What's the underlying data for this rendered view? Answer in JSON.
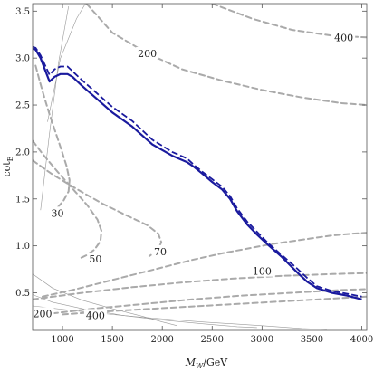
{
  "chart_data": {
    "type": "line",
    "xlabel": "M_W/GeV",
    "xlabel_parts": {
      "main": "M",
      "sub": "W",
      "unit": "/GeV"
    },
    "ylabel": "cot_E",
    "ylabel_parts": {
      "main": "cot",
      "sub": "E"
    },
    "xlim": [
      700,
      4050
    ],
    "ylim": [
      0.1,
      3.58
    ],
    "xticks": [
      1000,
      1500,
      2000,
      2500,
      3000,
      3500,
      4000
    ],
    "xtick_labels": [
      "1000",
      "1500",
      "2000",
      "2500",
      "3000",
      "3500",
      "4000"
    ],
    "yticks": [
      0.5,
      1.0,
      1.5,
      2.0,
      2.5,
      3.0,
      3.5
    ],
    "ytick_labels": [
      "0.5",
      "1.0",
      "1.5",
      "2.0",
      "2.5",
      "3.0",
      "3.5"
    ],
    "grid": false,
    "colors": {
      "exclusion": "#1a1a9e",
      "contour": "#aaaaaa",
      "thin": "#999999",
      "frame": "#555555"
    },
    "series": [
      {
        "style": "solid",
        "x": [
          700,
          730,
          780,
          870,
          920,
          980,
          1050,
          1100,
          1200,
          1350,
          1500,
          1700,
          1900,
          2100,
          2250,
          2320,
          2400,
          2500,
          2600,
          2680,
          2750,
          2850,
          2950,
          3050,
          3200,
          3350,
          3450,
          3550,
          3700,
          3850,
          4000
        ],
        "y": [
          3.1,
          3.09,
          3.0,
          2.75,
          2.8,
          2.83,
          2.83,
          2.8,
          2.7,
          2.56,
          2.42,
          2.27,
          2.08,
          1.96,
          1.89,
          1.84,
          1.77,
          1.68,
          1.6,
          1.5,
          1.37,
          1.23,
          1.12,
          1.02,
          0.88,
          0.72,
          0.62,
          0.55,
          0.5,
          0.47,
          0.43
        ]
      },
      {
        "style": "dashed",
        "x": [
          700,
          730,
          780,
          870,
          920,
          980,
          1050,
          1100,
          1200,
          1350,
          1500,
          1700,
          1900,
          2100,
          2250,
          2320,
          2400,
          2500,
          2600,
          2680,
          2750,
          2850,
          2950,
          3050,
          3200,
          3350,
          3450,
          3550,
          3700,
          3850,
          4000
        ],
        "y": [
          3.12,
          3.11,
          3.03,
          2.82,
          2.88,
          2.91,
          2.91,
          2.86,
          2.76,
          2.62,
          2.48,
          2.33,
          2.13,
          2.0,
          1.93,
          1.86,
          1.79,
          1.71,
          1.63,
          1.53,
          1.4,
          1.26,
          1.15,
          1.04,
          0.9,
          0.76,
          0.66,
          0.57,
          0.52,
          0.49,
          0.46
        ]
      }
    ],
    "contours": [
      {
        "label": "200",
        "x": [
          1240,
          1500,
          1850,
          2200,
          2600,
          3000,
          3400,
          3800,
          4050
        ],
        "y": [
          3.58,
          3.27,
          3.05,
          2.88,
          2.76,
          2.66,
          2.58,
          2.52,
          2.5
        ]
      },
      {
        "label": "400",
        "x": [
          2500,
          2900,
          3300,
          3700,
          4050
        ],
        "y": [
          3.58,
          3.42,
          3.3,
          3.24,
          3.22
        ]
      },
      {
        "label": "30",
        "x": [
          730,
          770,
          815,
          870,
          930,
          990,
          1040,
          1070,
          1060,
          1010,
          960,
          930,
          920,
          930
        ],
        "y": [
          2.92,
          2.76,
          2.59,
          2.4,
          2.21,
          2.02,
          1.85,
          1.7,
          1.58,
          1.48,
          1.42,
          1.38,
          1.34,
          1.32
        ]
      },
      {
        "label": "50",
        "x": [
          700,
          800,
          950,
          1100,
          1250,
          1350,
          1390,
          1380,
          1320,
          1240,
          1180
        ],
        "y": [
          2.12,
          1.98,
          1.79,
          1.61,
          1.43,
          1.28,
          1.16,
          1.05,
          0.96,
          0.9,
          0.87
        ]
      },
      {
        "label": "70",
        "x": [
          700,
          900,
          1150,
          1400,
          1650,
          1850,
          1960,
          1990,
          1960,
          1870
        ],
        "y": [
          1.91,
          1.76,
          1.6,
          1.45,
          1.32,
          1.22,
          1.13,
          1.04,
          0.96,
          0.89
        ]
      },
      {
        "label": "100",
        "x": [
          800,
          1100,
          1400,
          1700,
          2000,
          2300,
          2600,
          2900,
          3100,
          3300,
          3500,
          3700,
          3900,
          4050
        ],
        "y": [
          0.46,
          0.53,
          0.61,
          0.69,
          0.77,
          0.85,
          0.92,
          0.98,
          1.02,
          1.05,
          1.08,
          1.11,
          1.13,
          1.14
        ]
      },
      {
        "label": "",
        "x": [
          700,
          1200,
          1700,
          2200,
          2700,
          3200,
          3700,
          4050
        ],
        "y": [
          0.43,
          0.5,
          0.56,
          0.61,
          0.65,
          0.68,
          0.7,
          0.71
        ]
      },
      {
        "label": "200",
        "x": [
          900,
          1300,
          1800,
          2300,
          2800,
          3300,
          3800,
          4050
        ],
        "y": [
          0.28,
          0.33,
          0.38,
          0.43,
          0.47,
          0.5,
          0.53,
          0.54
        ]
      },
      {
        "label": "400",
        "x": [
          1000,
          1400,
          1900,
          2400,
          2900,
          3400,
          3900,
          4050
        ],
        "y": [
          0.27,
          0.3,
          0.33,
          0.36,
          0.39,
          0.42,
          0.45,
          0.46
        ]
      }
    ],
    "thin_lines": [
      {
        "x": [
          780,
          870,
          960,
          1060
        ],
        "y": [
          1.38,
          2.2,
          2.95,
          3.55
        ]
      },
      {
        "x": [
          850,
          980,
          1140,
          1230
        ],
        "y": [
          2.32,
          3.0,
          3.42,
          3.58
        ]
      },
      {
        "x": [
          700,
          900,
          1200,
          1500,
          1800,
          2000,
          2150
        ],
        "y": [
          0.7,
          0.55,
          0.42,
          0.33,
          0.25,
          0.19,
          0.15
        ]
      },
      {
        "x": [
          700,
          900,
          1200,
          1600,
          2000,
          2400,
          2750,
          2950
        ],
        "y": [
          0.48,
          0.4,
          0.33,
          0.26,
          0.21,
          0.17,
          0.14,
          0.13
        ]
      },
      {
        "x": [
          700,
          1200,
          1800,
          2400,
          3000,
          3400,
          3650
        ],
        "y": [
          0.36,
          0.3,
          0.24,
          0.19,
          0.15,
          0.12,
          0.11
        ]
      }
    ],
    "contour_labels": [
      {
        "text": "200",
        "x": 1850,
        "y": 3.05
      },
      {
        "text": "400",
        "x": 3820,
        "y": 3.22
      },
      {
        "text": "30",
        "x": 950,
        "y": 1.35
      },
      {
        "text": "50",
        "x": 1330,
        "y": 0.86
      },
      {
        "text": "70",
        "x": 1980,
        "y": 0.94
      },
      {
        "text": "100",
        "x": 3000,
        "y": 0.73
      },
      {
        "text": "200",
        "x": 800,
        "y": 0.28
      },
      {
        "text": "400",
        "x": 1330,
        "y": 0.26
      }
    ]
  }
}
